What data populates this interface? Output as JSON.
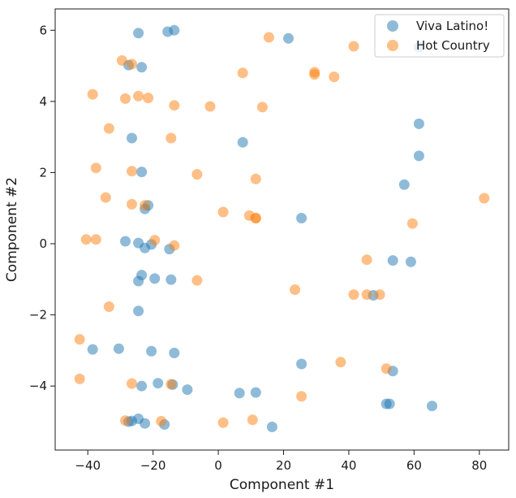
{
  "chart_data": {
    "type": "scatter",
    "title": "",
    "xlabel": "Component #1",
    "ylabel": "Component #2",
    "xlim": [
      -50,
      89
    ],
    "ylim": [
      -5.8,
      6.6
    ],
    "xticks": [
      -40,
      -20,
      0,
      20,
      40,
      60,
      80
    ],
    "yticks": [
      -4,
      -2,
      0,
      2,
      4,
      6
    ],
    "xtick_labels": [
      "−40",
      "−20",
      "0",
      "20",
      "40",
      "60",
      "80"
    ],
    "ytick_labels": [
      "−4",
      "−2",
      "0",
      "2",
      "4",
      "6"
    ],
    "grid": false,
    "legend_position": "top-right",
    "series": [
      {
        "name": "Viva Latino!",
        "color": "#1f77b4",
        "points": [
          [
            -24.5,
            5.92
          ],
          [
            -15.5,
            5.96
          ],
          [
            -13.5,
            6.0
          ],
          [
            21.5,
            5.77
          ],
          [
            -27.5,
            5.02
          ],
          [
            -23.5,
            4.96
          ],
          [
            61.5,
            3.37
          ],
          [
            -26.5,
            2.97
          ],
          [
            7.5,
            2.85
          ],
          [
            61.5,
            2.47
          ],
          [
            -23.5,
            2.02
          ],
          [
            57.0,
            1.66
          ],
          [
            -21.5,
            1.08
          ],
          [
            -22.5,
            0.98
          ],
          [
            25.5,
            0.72
          ],
          [
            -28.5,
            0.07
          ],
          [
            -24.5,
            0.02
          ],
          [
            -20.5,
            -0.02
          ],
          [
            -22.5,
            -0.12
          ],
          [
            -15.0,
            -0.15
          ],
          [
            53.5,
            -0.47
          ],
          [
            59.0,
            -0.51
          ],
          [
            -23.5,
            -0.88
          ],
          [
            -19.5,
            -0.98
          ],
          [
            -14.5,
            -1.01
          ],
          [
            -24.5,
            -1.05
          ],
          [
            47.5,
            -1.45
          ],
          [
            -24.5,
            -1.89
          ],
          [
            -38.5,
            -2.97
          ],
          [
            -30.5,
            -2.95
          ],
          [
            -20.5,
            -3.02
          ],
          [
            -13.5,
            -3.07
          ],
          [
            25.5,
            -3.38
          ],
          [
            53.5,
            -3.58
          ],
          [
            -18.5,
            -3.92
          ],
          [
            -14.0,
            -3.96
          ],
          [
            -23.5,
            -4.0
          ],
          [
            -9.5,
            -4.1
          ],
          [
            6.5,
            -4.2
          ],
          [
            11.5,
            -4.18
          ],
          [
            51.5,
            -4.5
          ],
          [
            52.5,
            -4.5
          ],
          [
            65.5,
            -4.56
          ],
          [
            -24.5,
            -4.92
          ],
          [
            -26.5,
            -4.98
          ],
          [
            -27.5,
            -5.0
          ],
          [
            -22.5,
            -5.05
          ],
          [
            -16.5,
            -5.08
          ],
          [
            16.5,
            -5.15
          ],
          [
            61.5,
            5.52
          ]
        ]
      },
      {
        "name": "Hot Country",
        "color": "#ff7f0e",
        "points": [
          [
            15.5,
            5.8
          ],
          [
            41.5,
            5.55
          ],
          [
            -29.5,
            5.15
          ],
          [
            -26.5,
            5.05
          ],
          [
            29.5,
            4.82
          ],
          [
            29.5,
            4.76
          ],
          [
            7.5,
            4.8
          ],
          [
            35.5,
            4.69
          ],
          [
            -38.5,
            4.2
          ],
          [
            -24.5,
            4.15
          ],
          [
            -28.5,
            4.08
          ],
          [
            -21.5,
            4.1
          ],
          [
            -13.5,
            3.89
          ],
          [
            -2.5,
            3.86
          ],
          [
            13.5,
            3.84
          ],
          [
            -33.5,
            3.24
          ],
          [
            -14.5,
            2.97
          ],
          [
            -37.5,
            2.13
          ],
          [
            -26.5,
            2.04
          ],
          [
            -6.5,
            1.95
          ],
          [
            11.5,
            1.82
          ],
          [
            -34.5,
            1.3
          ],
          [
            -26.5,
            1.11
          ],
          [
            -22.5,
            1.08
          ],
          [
            1.5,
            0.89
          ],
          [
            9.5,
            0.79
          ],
          [
            11.5,
            0.72
          ],
          [
            11.5,
            0.72
          ],
          [
            81.5,
            1.28
          ],
          [
            59.5,
            0.57
          ],
          [
            -40.5,
            0.12
          ],
          [
            -37.5,
            0.12
          ],
          [
            -19.5,
            0.1
          ],
          [
            -13.5,
            -0.05
          ],
          [
            45.5,
            -0.45
          ],
          [
            -6.5,
            -1.03
          ],
          [
            23.5,
            -1.29
          ],
          [
            41.5,
            -1.43
          ],
          [
            45.5,
            -1.43
          ],
          [
            49.5,
            -1.43
          ],
          [
            -33.5,
            -1.77
          ],
          [
            -42.5,
            -2.69
          ],
          [
            37.5,
            -3.33
          ],
          [
            51.5,
            -3.51
          ],
          [
            -42.5,
            -3.8
          ],
          [
            -26.5,
            -3.93
          ],
          [
            -14.5,
            -3.95
          ],
          [
            25.5,
            -4.29
          ],
          [
            -28.5,
            -4.97
          ],
          [
            -17.5,
            -4.99
          ],
          [
            10.5,
            -4.95
          ],
          [
            1.5,
            -5.03
          ]
        ]
      }
    ]
  }
}
